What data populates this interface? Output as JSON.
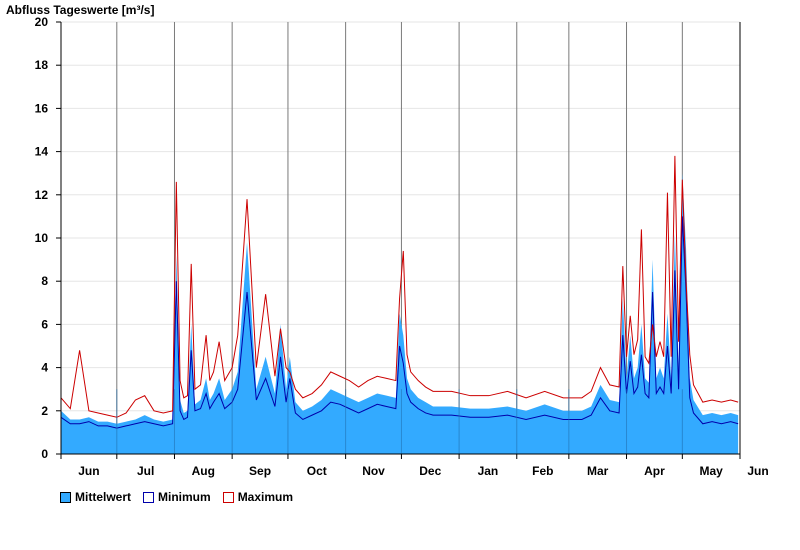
{
  "chart_data": {
    "type": "area",
    "title": "Abfluss Tageswerte [m³/s]",
    "ylim": [
      0,
      20
    ],
    "yticks": [
      0,
      2,
      4,
      6,
      8,
      10,
      12,
      14,
      16,
      18,
      20
    ],
    "grid": true,
    "legend_position": "bottom-left",
    "month_labels": [
      "Jun",
      "Jul",
      "Aug",
      "Sep",
      "Oct",
      "Nov",
      "Dec",
      "Jan",
      "Feb",
      "Mar",
      "Apr",
      "May",
      "Jun"
    ],
    "month_lengths": [
      30,
      31,
      31,
      30,
      31,
      30,
      31,
      31,
      28,
      31,
      30,
      31
    ],
    "colors": {
      "mean": "#33aaff",
      "min": "#0000aa",
      "max": "#cc0000"
    },
    "series": [
      {
        "name": "Mittelwert",
        "x_day": [
          0,
          5,
          10,
          15,
          20,
          25,
          30,
          35,
          40,
          45,
          50,
          55,
          60,
          62,
          64,
          66,
          68,
          70,
          72,
          75,
          78,
          80,
          82,
          85,
          88,
          92,
          95,
          100,
          105,
          110,
          115,
          118,
          121,
          123,
          126,
          130,
          135,
          140,
          145,
          150,
          155,
          160,
          165,
          170,
          175,
          180,
          182,
          184,
          186,
          188,
          192,
          196,
          200,
          210,
          220,
          230,
          240,
          250,
          260,
          270,
          280,
          285,
          290,
          295,
          300,
          302,
          304,
          306,
          308,
          310,
          312,
          314,
          316,
          318,
          320,
          322,
          324,
          326,
          328,
          330,
          332,
          334,
          336,
          338,
          340,
          345,
          350,
          355,
          360,
          364
        ],
        "values": [
          2.0,
          1.6,
          1.6,
          1.7,
          1.5,
          1.5,
          1.4,
          1.5,
          1.6,
          1.8,
          1.6,
          1.5,
          1.6,
          9.2,
          2.5,
          1.9,
          2.0,
          6.0,
          2.3,
          2.5,
          3.5,
          2.5,
          2.8,
          3.5,
          2.5,
          3.0,
          3.8,
          9.8,
          3.0,
          4.5,
          2.8,
          6.0,
          3.0,
          4.5,
          2.4,
          2.0,
          2.2,
          2.5,
          3.0,
          2.8,
          2.6,
          2.4,
          2.6,
          2.8,
          2.7,
          2.6,
          6.5,
          5.5,
          3.5,
          3.0,
          2.6,
          2.4,
          2.2,
          2.2,
          2.1,
          2.1,
          2.2,
          2.0,
          2.3,
          2.0,
          2.0,
          2.2,
          3.2,
          2.5,
          2.4,
          7.2,
          3.5,
          5.5,
          3.5,
          4.0,
          6.0,
          3.5,
          3.3,
          9.0,
          3.5,
          4.0,
          3.5,
          6.5,
          3.5,
          10.2,
          4.0,
          13.0,
          9.5,
          3.5,
          2.5,
          1.8,
          1.9,
          1.8,
          1.9,
          1.8
        ]
      },
      {
        "name": "Minimum",
        "x_day": [
          0,
          5,
          10,
          15,
          20,
          25,
          30,
          35,
          40,
          45,
          50,
          55,
          60,
          62,
          64,
          66,
          68,
          70,
          72,
          75,
          78,
          80,
          82,
          85,
          88,
          92,
          95,
          100,
          105,
          110,
          115,
          118,
          121,
          123,
          126,
          130,
          135,
          140,
          145,
          150,
          155,
          160,
          165,
          170,
          175,
          180,
          182,
          184,
          186,
          188,
          192,
          196,
          200,
          210,
          220,
          230,
          240,
          250,
          260,
          270,
          280,
          285,
          290,
          295,
          300,
          302,
          304,
          306,
          308,
          310,
          312,
          314,
          316,
          318,
          320,
          322,
          324,
          326,
          328,
          330,
          332,
          334,
          336,
          338,
          340,
          345,
          350,
          355,
          360,
          364
        ],
        "values": [
          1.7,
          1.4,
          1.4,
          1.5,
          1.3,
          1.3,
          1.2,
          1.3,
          1.4,
          1.5,
          1.4,
          1.3,
          1.4,
          8.0,
          2.0,
          1.6,
          1.7,
          4.8,
          2.0,
          2.1,
          2.8,
          2.1,
          2.4,
          2.8,
          2.1,
          2.4,
          3.0,
          7.5,
          2.5,
          3.5,
          2.2,
          4.5,
          2.4,
          3.5,
          1.9,
          1.6,
          1.8,
          2.0,
          2.4,
          2.3,
          2.1,
          1.9,
          2.1,
          2.3,
          2.2,
          2.1,
          5.0,
          4.2,
          2.8,
          2.4,
          2.1,
          1.9,
          1.8,
          1.8,
          1.7,
          1.7,
          1.8,
          1.6,
          1.8,
          1.6,
          1.6,
          1.8,
          2.6,
          2.0,
          1.9,
          5.5,
          2.8,
          4.3,
          2.8,
          3.1,
          4.6,
          2.8,
          2.6,
          7.5,
          2.8,
          3.1,
          2.8,
          5.0,
          2.8,
          8.5,
          3.0,
          11.0,
          7.5,
          2.6,
          1.9,
          1.4,
          1.5,
          1.4,
          1.5,
          1.4
        ]
      },
      {
        "name": "Maximum",
        "x_day": [
          0,
          5,
          10,
          15,
          20,
          25,
          30,
          35,
          40,
          45,
          50,
          55,
          60,
          62,
          64,
          66,
          68,
          70,
          72,
          75,
          78,
          80,
          82,
          85,
          88,
          92,
          95,
          100,
          105,
          110,
          115,
          118,
          121,
          123,
          126,
          130,
          135,
          140,
          145,
          150,
          155,
          160,
          165,
          170,
          175,
          180,
          182,
          184,
          186,
          188,
          192,
          196,
          200,
          210,
          220,
          230,
          240,
          250,
          260,
          270,
          280,
          285,
          290,
          295,
          300,
          302,
          304,
          306,
          308,
          310,
          312,
          314,
          316,
          318,
          320,
          322,
          324,
          326,
          328,
          330,
          332,
          334,
          336,
          338,
          340,
          345,
          350,
          355,
          360,
          364
        ],
        "values": [
          2.6,
          2.1,
          4.8,
          2.0,
          1.9,
          1.8,
          1.7,
          1.9,
          2.5,
          2.7,
          2.0,
          1.9,
          2.0,
          12.6,
          3.4,
          2.6,
          2.7,
          8.8,
          3.0,
          3.2,
          5.5,
          3.4,
          3.8,
          5.2,
          3.4,
          4.0,
          5.5,
          11.8,
          4.0,
          7.4,
          3.6,
          5.8,
          4.0,
          3.8,
          3.0,
          2.6,
          2.8,
          3.2,
          3.8,
          3.6,
          3.4,
          3.1,
          3.4,
          3.6,
          3.5,
          3.4,
          7.2,
          9.4,
          4.6,
          3.8,
          3.4,
          3.1,
          2.9,
          2.9,
          2.7,
          2.7,
          2.9,
          2.6,
          2.9,
          2.6,
          2.6,
          2.9,
          4.0,
          3.2,
          3.1,
          8.7,
          4.5,
          6.4,
          4.6,
          5.3,
          10.4,
          4.5,
          4.2,
          6.0,
          4.5,
          5.2,
          4.5,
          12.1,
          4.5,
          13.8,
          5.2,
          12.7,
          8.0,
          4.6,
          3.2,
          2.4,
          2.5,
          2.4,
          2.5,
          2.4
        ]
      }
    ]
  }
}
